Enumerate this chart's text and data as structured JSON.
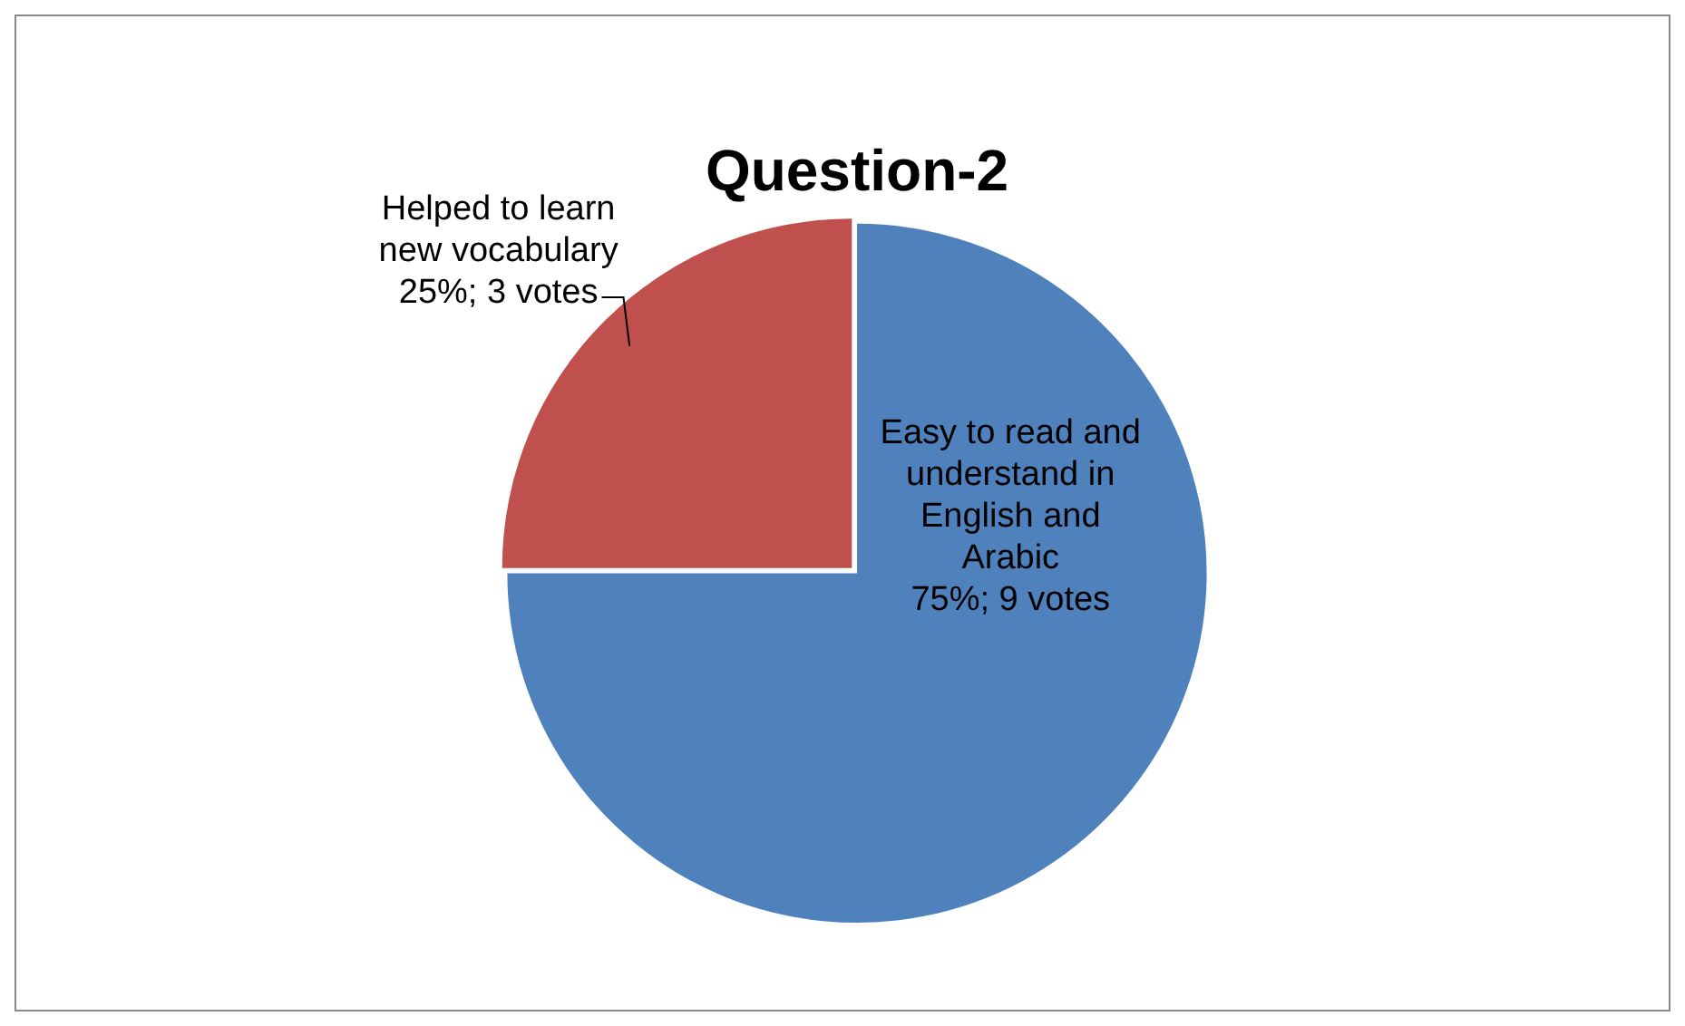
{
  "chart_data": {
    "type": "pie",
    "title": "Question-2",
    "categories": [
      "Easy to read and understand in English and Arabic",
      "Helped to learn new vocabulary"
    ],
    "values": [
      9,
      3
    ],
    "value_labels": [
      "75%; 9 votes",
      "25%; 3 votes"
    ],
    "colors": [
      "#4f81bd",
      "#c0504d"
    ],
    "legend": false
  }
}
